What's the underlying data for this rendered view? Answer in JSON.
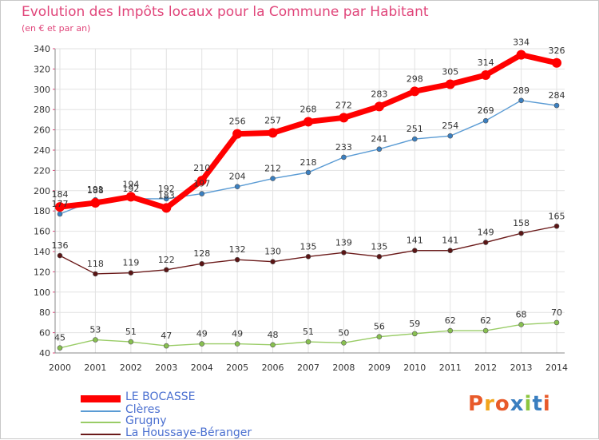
{
  "title": "Evolution des Impôts locaux pour la Commune par Habitant",
  "subtitle": "(en € et par an)",
  "logo_text": "Proxiti",
  "chart_data": {
    "type": "line",
    "x": [
      "2000",
      "2001",
      "2002",
      "2003",
      "2004",
      "2005",
      "2006",
      "2007",
      "2008",
      "2009",
      "2010",
      "2011",
      "2012",
      "2013",
      "2014"
    ],
    "ylim": [
      40,
      340
    ],
    "yticks": [
      40,
      60,
      80,
      100,
      120,
      140,
      160,
      180,
      200,
      220,
      240,
      260,
      280,
      300,
      320,
      340
    ],
    "grid": true,
    "series": [
      {
        "name": "LE BOCASSE",
        "color": "#ff0000",
        "values": [
          184,
          188,
          194,
          183,
          210,
          256,
          257,
          268,
          272,
          283,
          298,
          305,
          314,
          334,
          326
        ]
      },
      {
        "name": "Clères",
        "color": "#5a9bd4",
        "values": [
          177,
          191,
          192,
          192,
          197,
          204,
          212,
          218,
          233,
          241,
          251,
          254,
          269,
          289,
          284
        ]
      },
      {
        "name": "Grugny",
        "color": "#99cc66",
        "values": [
          45,
          53,
          51,
          47,
          49,
          49,
          48,
          51,
          50,
          56,
          59,
          62,
          62,
          68,
          70
        ]
      },
      {
        "name": "La Houssaye-Béranger",
        "color": "#6b1a1a",
        "values": [
          136,
          118,
          119,
          122,
          128,
          132,
          130,
          135,
          139,
          135,
          141,
          141,
          149,
          158,
          165
        ]
      }
    ],
    "data_labels": {
      "LE BOCASSE": [
        "184",
        "188",
        "194",
        "183",
        "210",
        "256",
        "257",
        "268",
        "272",
        "283",
        "298",
        "305",
        "314",
        "334",
        "326"
      ],
      "Clères": [
        "177",
        "191",
        "192",
        "192",
        "197",
        "204",
        "212",
        "218",
        "233",
        "241",
        "251",
        "254",
        "269",
        "289",
        "284"
      ],
      "Grugny": [
        "45",
        "53",
        "51",
        "47",
        "49",
        "49",
        "48",
        "51",
        "50",
        "56",
        "59",
        "62",
        "62",
        "68",
        "70"
      ],
      "La Houssaye-Béranger": [
        "136",
        "118",
        "119",
        "122",
        "128",
        "132",
        "130",
        "135",
        "139",
        "135",
        "141",
        "141",
        "149",
        "158",
        "165"
      ]
    }
  }
}
